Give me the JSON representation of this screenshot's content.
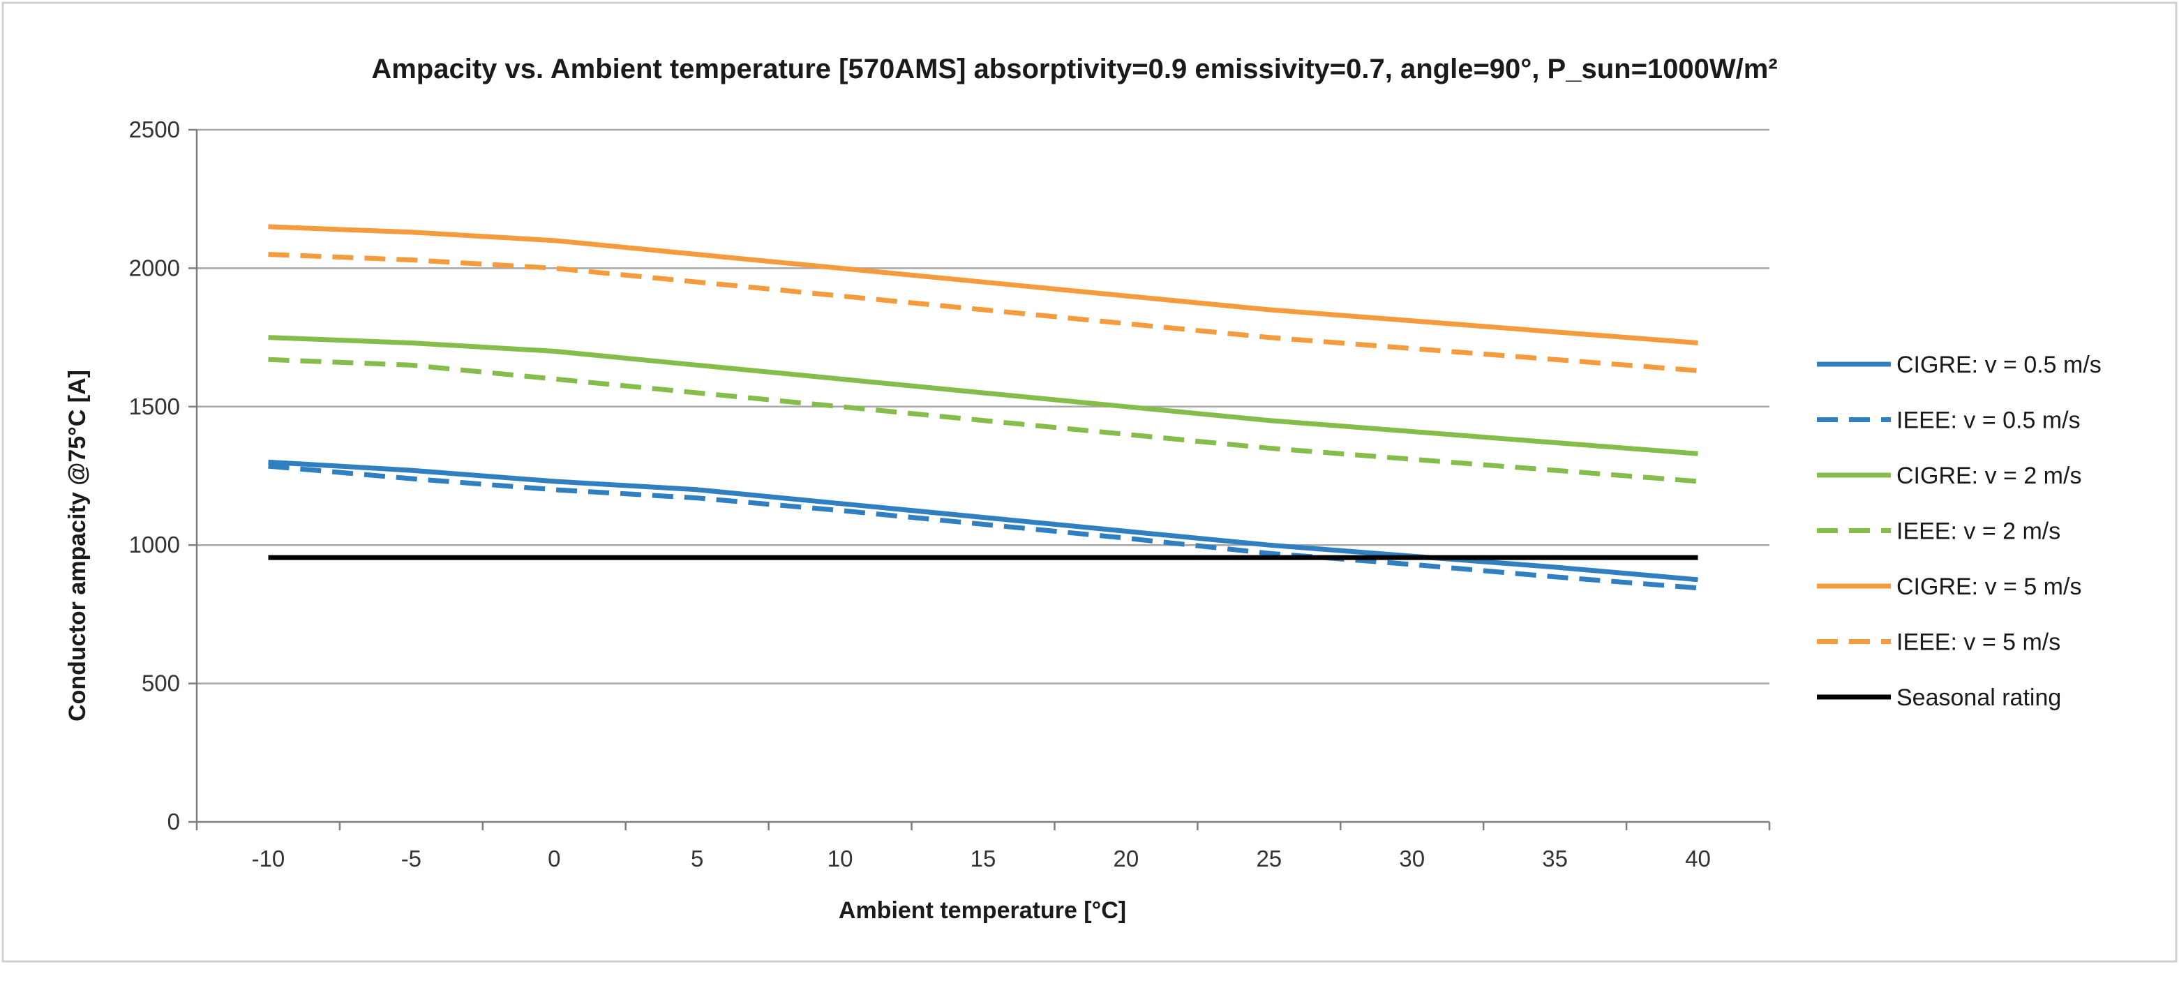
{
  "chart_data": {
    "type": "line",
    "title": "Ampacity vs. Ambient temperature [570AMS] absorptivity=0.9 emissivity=0.7, angle=90°, P_sun=1000W/m²",
    "xlabel": "Ambient temperature [°C]",
    "ylabel": "Conductor ampacity @75°C [A]",
    "x": [
      -10,
      -5,
      0,
      5,
      10,
      15,
      20,
      25,
      30,
      35,
      40
    ],
    "x_ticks": [
      "-10",
      "-5",
      "0",
      "5",
      "10",
      "15",
      "20",
      "25",
      "30",
      "35",
      "40"
    ],
    "y_ticks": [
      "0",
      "500",
      "1000",
      "1500",
      "2000",
      "2500"
    ],
    "ylim": [
      0,
      2500
    ],
    "grid": true,
    "legend_position": "right",
    "series": [
      {
        "name": "CIGRE: v = 0.5 m/s",
        "color": "#2f7fc1",
        "dashed": false,
        "values": [
          1300,
          1270,
          1230,
          1200,
          1150,
          1100,
          1050,
          1000,
          960,
          920,
          875
        ]
      },
      {
        "name": "IEEE: v = 0.5 m/s",
        "color": "#2f7fc1",
        "dashed": true,
        "values": [
          1285,
          1240,
          1200,
          1170,
          1125,
          1075,
          1025,
          970,
          930,
          885,
          845
        ]
      },
      {
        "name": "CIGRE: v = 2 m/s",
        "color": "#84bd4a",
        "dashed": false,
        "values": [
          1750,
          1730,
          1700,
          1650,
          1600,
          1550,
          1500,
          1450,
          1410,
          1370,
          1330
        ]
      },
      {
        "name": "IEEE: v = 2 m/s",
        "color": "#84bd4a",
        "dashed": true,
        "values": [
          1670,
          1650,
          1600,
          1550,
          1500,
          1450,
          1400,
          1350,
          1310,
          1270,
          1230
        ]
      },
      {
        "name": "CIGRE: v = 5 m/s",
        "color": "#f59b3c",
        "dashed": false,
        "values": [
          2150,
          2130,
          2100,
          2050,
          2000,
          1950,
          1900,
          1850,
          1810,
          1770,
          1730
        ]
      },
      {
        "name": "IEEE: v = 5 m/s",
        "color": "#f59b3c",
        "dashed": true,
        "values": [
          2050,
          2030,
          2000,
          1950,
          1900,
          1850,
          1800,
          1750,
          1710,
          1670,
          1630
        ]
      },
      {
        "name": "Seasonal rating",
        "color": "#000000",
        "dashed": false,
        "values": [
          955,
          955,
          955,
          955,
          955,
          955,
          955,
          955,
          955,
          955,
          955
        ]
      }
    ]
  }
}
